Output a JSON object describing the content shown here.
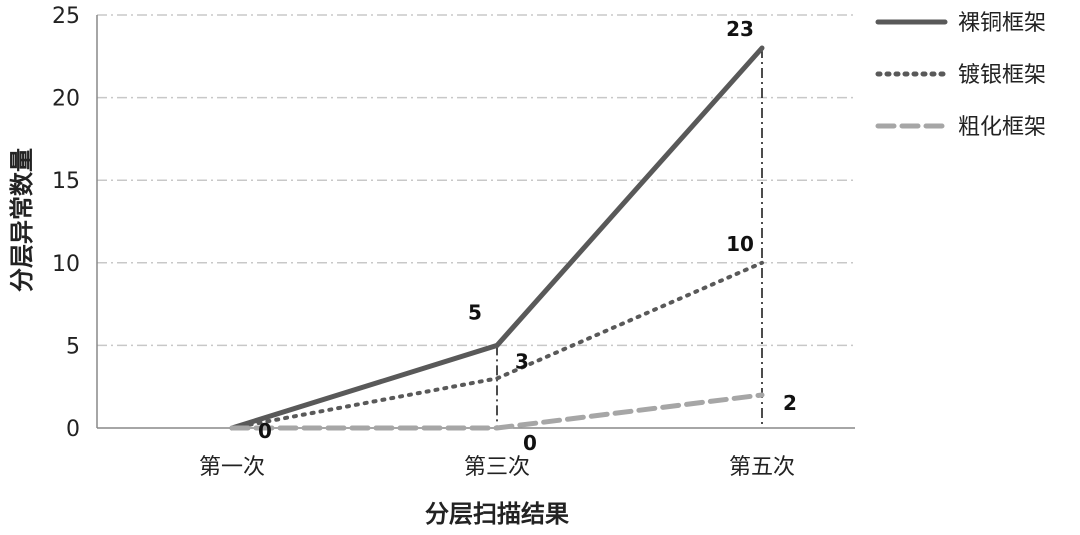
{
  "chart_data": {
    "type": "line",
    "categories": [
      "第一次",
      "第三次",
      "第五次"
    ],
    "xlabel": "分层扫描结果",
    "ylabel": "分层异常数量",
    "ylim": [
      0,
      25
    ],
    "yticks": [
      0,
      5,
      10,
      15,
      20,
      25
    ],
    "grid": true,
    "legend_position": "top-right",
    "series": [
      {
        "name": "裸铜框架",
        "values": [
          0,
          5,
          23
        ],
        "style": "solid",
        "color": "#595959"
      },
      {
        "name": "镀银框架",
        "values": [
          0,
          3,
          10
        ],
        "style": "dotted",
        "color": "#595959"
      },
      {
        "name": "粗化框架",
        "values": [
          0,
          0,
          2
        ],
        "style": "dashed",
        "color": "#a6a6a6"
      }
    ],
    "data_labels": [
      {
        "text": "0",
        "series": 0,
        "index": 0
      },
      {
        "text": "5",
        "series": 0,
        "index": 1
      },
      {
        "text": "23",
        "series": 0,
        "index": 2
      },
      {
        "text": "3",
        "series": 1,
        "index": 1
      },
      {
        "text": "10",
        "series": 1,
        "index": 2
      },
      {
        "text": "0",
        "series": 2,
        "index": 1
      },
      {
        "text": "2",
        "series": 2,
        "index": 2
      }
    ]
  }
}
